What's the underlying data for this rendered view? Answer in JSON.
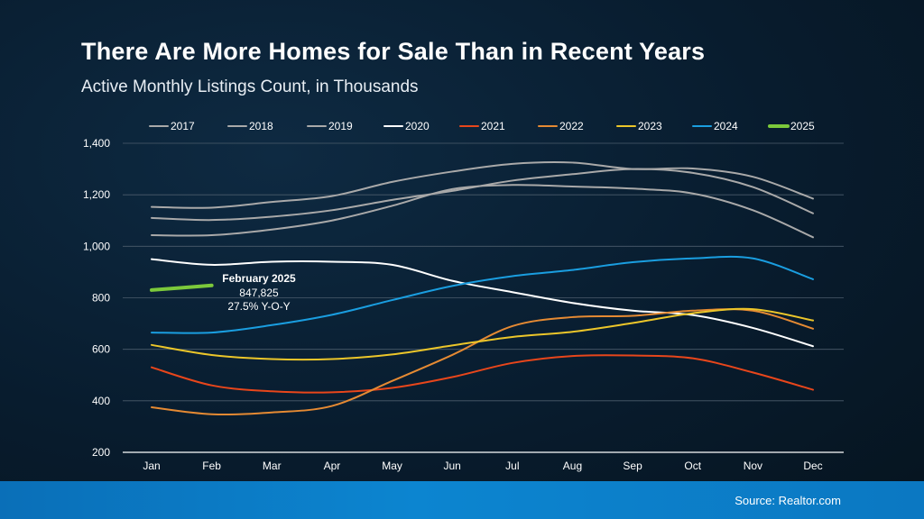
{
  "title": "There Are More Homes for Sale Than in Recent Years",
  "subtitle": "Active Monthly Listings Count, in Thousands",
  "source": "Source: Realtor.com",
  "annotation": {
    "line1": "February 2025",
    "line2": "847,825",
    "line3": "27.5% Y-O-Y"
  },
  "chart_data": {
    "type": "line",
    "title": "There Are More Homes for Sale Than in Recent Years",
    "subtitle": "Active Monthly Listings Count, in Thousands",
    "xlabel": "",
    "ylabel": "",
    "ylim": [
      200,
      1400
    ],
    "yticks": [
      200,
      400,
      600,
      800,
      1000,
      1200,
      1400
    ],
    "ytick_labels": [
      "200",
      "400",
      "600",
      "800",
      "1,000",
      "1,200",
      "1,400"
    ],
    "grid": "horizontal",
    "legend_position": "top",
    "categories": [
      "Jan",
      "Feb",
      "Mar",
      "Apr",
      "May",
      "Jun",
      "Jul",
      "Aug",
      "Sep",
      "Oct",
      "Nov",
      "Dec"
    ],
    "series": [
      {
        "name": "2017",
        "color": "#a9a9a9",
        "width": 2,
        "values": [
          1153,
          1150,
          1172,
          1195,
          1250,
          1290,
          1320,
          1325,
          1300,
          1302,
          1270,
          1185
        ]
      },
      {
        "name": "2018",
        "color": "#a9a9a9",
        "width": 2,
        "values": [
          1110,
          1102,
          1115,
          1140,
          1180,
          1215,
          1255,
          1280,
          1300,
          1285,
          1230,
          1128
        ]
      },
      {
        "name": "2019",
        "color": "#a9a9a9",
        "width": 2,
        "values": [
          1043,
          1043,
          1065,
          1100,
          1157,
          1222,
          1238,
          1232,
          1224,
          1205,
          1140,
          1035
        ]
      },
      {
        "name": "2020",
        "color": "#ffffff",
        "width": 2,
        "values": [
          950,
          928,
          940,
          940,
          928,
          866,
          822,
          780,
          750,
          733,
          683,
          612
        ]
      },
      {
        "name": "2021",
        "color": "#e8461b",
        "width": 2,
        "values": [
          530,
          460,
          437,
          433,
          450,
          492,
          547,
          574,
          576,
          565,
          510,
          443
        ]
      },
      {
        "name": "2022",
        "color": "#e58a33",
        "width": 2,
        "values": [
          375,
          348,
          355,
          380,
          477,
          578,
          690,
          725,
          730,
          750,
          750,
          680
        ]
      },
      {
        "name": "2023",
        "color": "#ecc62a",
        "width": 2,
        "values": [
          617,
          578,
          562,
          562,
          580,
          615,
          648,
          668,
          702,
          740,
          756,
          712
        ]
      },
      {
        "name": "2024",
        "color": "#1a9ee0",
        "width": 2,
        "values": [
          665,
          665,
          694,
          734,
          791,
          846,
          884,
          908,
          938,
          953,
          953,
          872
        ]
      },
      {
        "name": "2025",
        "color": "#7cc93b",
        "width": 4,
        "values": [
          830,
          848,
          null,
          null,
          null,
          null,
          null,
          null,
          null,
          null,
          null,
          null
        ]
      }
    ]
  }
}
